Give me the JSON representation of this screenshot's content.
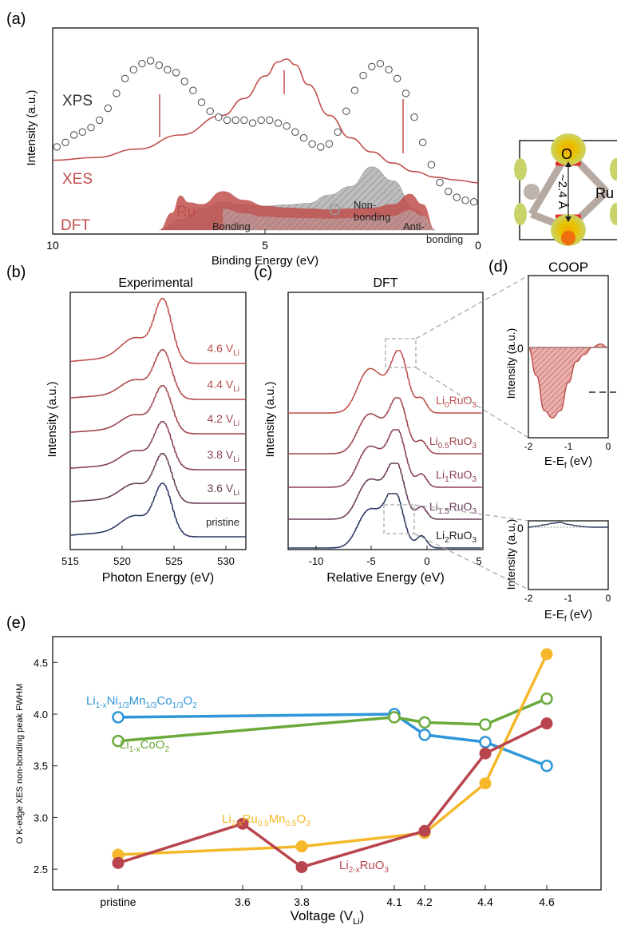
{
  "colors": {
    "red": "#c0504d",
    "darkred": "#a83a3a",
    "navy": "#2f3a63",
    "blue": "#2f96d8",
    "green": "#6aaa3a",
    "yellow": "#f5b82a",
    "crimson": "#b8454e",
    "gray": "#b9b9b9",
    "axis": "#222222"
  },
  "panel_a": {
    "label": "(a)",
    "ylabel": "Intensity (a.u.)",
    "xlabel": "Binding Energy (eV)",
    "xticks": [
      "10",
      "5",
      "0"
    ],
    "text_xps": "XPS",
    "text_xes": "XES",
    "text_dft": "DFT",
    "text_ru": "Ru",
    "text_o": "O",
    "text_bonding": "Bonding",
    "text_nonbonding_1": "Non-",
    "text_nonbonding_2": "bonding",
    "text_antibonding_1": "Anti-",
    "text_antibonding_2": "bonding",
    "inset_o": "O",
    "inset_ru": "Ru",
    "inset_dist": "~2.4 Å"
  },
  "panel_b": {
    "label": "(b)",
    "title": "Experimental",
    "ylabel": "Intensity (a.u.)",
    "xlabel": "Photon Energy (eV)",
    "xticks": [
      "515",
      "520",
      "525",
      "530"
    ],
    "traces": [
      "4.6 V",
      "4.4 V",
      "4.2 V",
      "3.8 V",
      "3.6 V",
      "pristine"
    ],
    "sub": "Li"
  },
  "panel_c": {
    "label": "(c)",
    "title": "DFT",
    "ylabel": "Intensity (a.u.)",
    "xlabel": "Relative Energy (eV)",
    "xticks": [
      "-10",
      "-5",
      "0",
      "5"
    ],
    "traces": [
      {
        "pre": "Li",
        "sub": "0",
        "post": "RuO",
        "sub2": "3"
      },
      {
        "pre": "Li",
        "sub": "0.5",
        "post": "RuO",
        "sub2": "3"
      },
      {
        "pre": "Li",
        "sub": "1",
        "post": "RuO",
        "sub2": "3"
      },
      {
        "pre": "Li",
        "sub": "1.5",
        "post": "RuO",
        "sub2": "3"
      },
      {
        "pre": "Li",
        "sub": "2",
        "post": "RuO",
        "sub2": "3"
      }
    ]
  },
  "panel_d": {
    "label": "(d)",
    "title": "COOP",
    "ylabel": "Intensity (a.u.)",
    "xlabel_pre": "E-E",
    "xlabel_sub": "f",
    "xlabel_post": " (eV)",
    "xticks": [
      "-2",
      "-1",
      "0"
    ],
    "zero": "0"
  },
  "panel_e": {
    "label": "(e)",
    "ylabel": "O K-edge XES non-bonding peak FWHM",
    "xlabel_pre": "Voltage (V",
    "xlabel_sub": "Li",
    "xlabel_post": ")",
    "yticks": [
      "2.5",
      "3.0",
      "3.5",
      "4.0",
      "4.5"
    ],
    "xticks": [
      "pristine",
      "3.6",
      "3.8",
      "4.1",
      "4.2",
      "4.4",
      "4.6"
    ],
    "label_nmc": [
      {
        "t": "Li",
        "s": ""
      },
      {
        "t": "1-x",
        "s": "sub"
      },
      {
        "t": "Ni",
        "s": ""
      },
      {
        "t": "1/3",
        "s": "sub"
      },
      {
        "t": "Mn",
        "s": ""
      },
      {
        "t": "1/3",
        "s": "sub"
      },
      {
        "t": "Co",
        "s": ""
      },
      {
        "t": "1/3",
        "s": "sub"
      },
      {
        "t": "O",
        "s": ""
      },
      {
        "t": "2",
        "s": "sub"
      }
    ],
    "label_lco": [
      {
        "t": "Li",
        "s": ""
      },
      {
        "t": "1-x",
        "s": "sub"
      },
      {
        "t": "CoO",
        "s": ""
      },
      {
        "t": "2",
        "s": "sub"
      }
    ],
    "label_lrmo": [
      {
        "t": "Li",
        "s": ""
      },
      {
        "t": "2-x",
        "s": "sub"
      },
      {
        "t": "Ru",
        "s": ""
      },
      {
        "t": "0.5",
        "s": "sub"
      },
      {
        "t": "Mn",
        "s": ""
      },
      {
        "t": "0.5",
        "s": "sub"
      },
      {
        "t": "O",
        "s": ""
      },
      {
        "t": "3",
        "s": "sub"
      }
    ],
    "label_lro": [
      {
        "t": "Li",
        "s": ""
      },
      {
        "t": "2-x",
        "s": "sub"
      },
      {
        "t": "RuO",
        "s": ""
      },
      {
        "t": "3",
        "s": "sub"
      }
    ]
  },
  "chart_data": [
    {
      "panel": "a",
      "type": "line",
      "xlabel": "Binding Energy (eV)",
      "ylabel": "Intensity (a.u.)",
      "xlim": [
        10,
        0
      ],
      "series": [
        {
          "name": "XPS",
          "style": "open circles",
          "x": [
            9.9,
            9.7,
            9.5,
            9.3,
            9.1,
            8.9,
            8.7,
            8.5,
            8.3,
            8.1,
            7.9,
            7.7,
            7.5,
            7.3,
            7.1,
            6.9,
            6.7,
            6.5,
            6.3,
            6.1,
            5.9,
            5.7,
            5.5,
            5.3,
            5.1,
            4.9,
            4.7,
            4.5,
            4.3,
            4.1,
            3.9,
            3.7,
            3.5,
            3.3,
            3.1,
            2.9,
            2.7,
            2.5,
            2.3,
            2.1,
            1.9,
            1.7,
            1.5,
            1.3,
            1.1,
            0.9,
            0.7,
            0.5,
            0.3,
            0.1
          ],
          "y": [
            0.42,
            0.45,
            0.5,
            0.52,
            0.55,
            0.6,
            0.68,
            0.78,
            0.88,
            0.94,
            0.98,
            1.0,
            0.97,
            0.94,
            0.92,
            0.86,
            0.8,
            0.72,
            0.66,
            0.62,
            0.6,
            0.6,
            0.6,
            0.58,
            0.6,
            0.6,
            0.58,
            0.56,
            0.52,
            0.48,
            0.44,
            0.42,
            0.44,
            0.52,
            0.66,
            0.8,
            0.9,
            0.96,
            0.98,
            0.94,
            0.88,
            0.78,
            0.62,
            0.45,
            0.3,
            0.18,
            0.12,
            0.08,
            0.06,
            0.05
          ]
        },
        {
          "name": "XES",
          "style": "line",
          "x": [
            10,
            9,
            8,
            7,
            6,
            5.5,
            5,
            4.7,
            4.5,
            4.3,
            4,
            3.5,
            3,
            2.5,
            2,
            1.5,
            1,
            0.5,
            0
          ],
          "y": [
            0.28,
            0.3,
            0.36,
            0.46,
            0.6,
            0.72,
            0.88,
            0.98,
            1.0,
            0.96,
            0.82,
            0.6,
            0.44,
            0.34,
            0.26,
            0.2,
            0.16,
            0.14,
            0.12
          ]
        },
        {
          "name": "Ru",
          "style": "filled area (DFT)",
          "x": [
            7.5,
            7.2,
            7.0,
            6.8,
            6.5,
            6.0,
            5.5,
            5.0,
            4.5,
            4.0,
            3.5,
            3.0,
            2.5,
            2.0,
            1.6,
            1.3,
            1.0
          ],
          "y": [
            0.0,
            0.2,
            0.4,
            0.32,
            0.3,
            0.45,
            0.35,
            0.28,
            0.26,
            0.25,
            0.24,
            0.25,
            0.26,
            0.3,
            0.42,
            0.3,
            0.0
          ]
        },
        {
          "name": "O",
          "style": "filled area (DFT)",
          "x": [
            7.5,
            7.0,
            6.5,
            6.0,
            5.5,
            5.0,
            4.5,
            4.0,
            3.5,
            3.0,
            2.5,
            2.0,
            1.5,
            1.0
          ],
          "y": [
            0.0,
            0.15,
            0.3,
            0.4,
            0.36,
            0.34,
            0.36,
            0.38,
            0.5,
            0.62,
            0.9,
            0.7,
            0.3,
            0.0
          ]
        }
      ]
    },
    {
      "panel": "b",
      "type": "line",
      "title": "Experimental",
      "xlabel": "Photon Energy (eV)",
      "ylabel": "Intensity (a.u.)",
      "xlim": [
        515,
        532
      ],
      "peak": 524,
      "series_order_top_to_bottom": [
        "4.6 V",
        "4.4 V",
        "4.2 V",
        "3.8 V",
        "3.6 V",
        "pristine"
      ]
    },
    {
      "panel": "c",
      "type": "line",
      "title": "DFT",
      "xlabel": "Relative Energy (eV)",
      "ylabel": "Intensity (a.u.)",
      "xlim": [
        -12.5,
        5
      ],
      "peaks": [
        -5.5,
        -2.5,
        -0.5
      ],
      "series_order_top_to_bottom": [
        "Li0RuO3",
        "Li0.5RuO3",
        "Li1RuO3",
        "Li1.5RuO3",
        "Li2RuO3"
      ]
    },
    {
      "panel": "d",
      "type": "area",
      "title": "COOP",
      "xlabel": "E-Ef (eV)",
      "ylabel": "Intensity (a.u.)",
      "xlim": [
        -2,
        0
      ],
      "series": [
        {
          "name": "top",
          "x": [
            -2,
            -1.8,
            -1.6,
            -1.4,
            -1.2,
            -1.0,
            -0.8,
            -0.6,
            -0.4,
            -0.2,
            0
          ],
          "y": [
            0,
            -0.4,
            -0.9,
            -1.0,
            -0.9,
            -0.5,
            -0.2,
            -0.1,
            0,
            0.05,
            0
          ]
        },
        {
          "name": "bottom",
          "x": [
            -2,
            -1.8,
            -1.6,
            -1.4,
            -1.2,
            -1.0,
            -0.8,
            -0.6,
            -0.4,
            -0.2,
            0
          ],
          "y": [
            0,
            0.02,
            0.05,
            0.08,
            0.1,
            0.06,
            0.03,
            0.01,
            0,
            0,
            0
          ]
        }
      ]
    },
    {
      "panel": "e",
      "type": "line",
      "xlabel": "Voltage (VLi)",
      "ylabel": "O K-edge XES non-bonding peak FWHM",
      "ylim": [
        2.3,
        4.75
      ],
      "x_categories": [
        "pristine",
        "3.6",
        "3.8",
        "4.1",
        "4.2",
        "4.4",
        "4.6"
      ],
      "series": [
        {
          "name": "Li1-xNi1/3Mn1/3Co1/3O2",
          "marker": "open",
          "x": [
            "pristine",
            "4.1",
            "4.2",
            "4.4",
            "4.6"
          ],
          "y": [
            3.97,
            4.0,
            3.8,
            3.73,
            3.5
          ]
        },
        {
          "name": "Li1-xCoO2",
          "marker": "open",
          "x": [
            "pristine",
            "4.1",
            "4.2",
            "4.4",
            "4.6"
          ],
          "y": [
            3.74,
            3.97,
            3.92,
            3.9,
            4.15
          ]
        },
        {
          "name": "Li2-xRu0.5Mn0.5O3",
          "marker": "filled",
          "x": [
            "pristine",
            "3.8",
            "4.2",
            "4.4",
            "4.6"
          ],
          "y": [
            2.64,
            2.72,
            2.85,
            3.33,
            4.58
          ]
        },
        {
          "name": "Li2-xRuO3",
          "marker": "filled",
          "x": [
            "pristine",
            "3.6",
            "3.8",
            "4.2",
            "4.4",
            "4.6"
          ],
          "y": [
            2.56,
            2.94,
            2.52,
            2.87,
            3.62,
            3.91
          ]
        }
      ]
    }
  ]
}
